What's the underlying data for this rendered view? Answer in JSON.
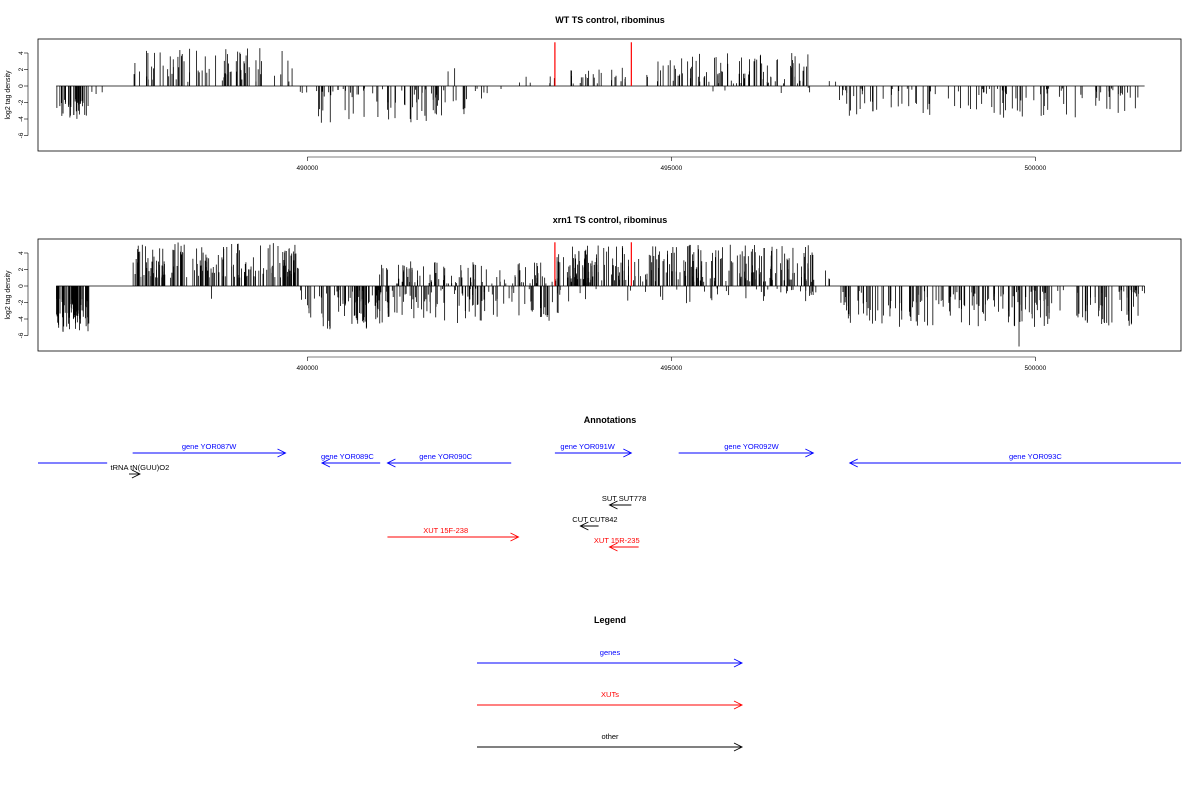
{
  "chart_data": [
    {
      "type": "bar",
      "title": "WT TS control, ribominus",
      "ylabel": "log2 tag density",
      "xlabel": "",
      "xlim": [
        486300,
        502000
      ],
      "ylim": [
        -7,
        6
      ],
      "yticks": [
        4,
        2,
        0,
        -2,
        -4,
        -6
      ],
      "xticks": [
        490000,
        495000,
        500000
      ],
      "highlight": [
        {
          "x": 493400,
          "y": 5.3,
          "color": "#ff0000"
        },
        {
          "x": 494450,
          "y": 5.3,
          "color": "#ff0000"
        }
      ],
      "regions": [
        {
          "start": 486550,
          "end": 487000,
          "sign": -1,
          "min": 1.5,
          "max": 4.0,
          "n": 40
        },
        {
          "start": 487000,
          "end": 487200,
          "sign": -1,
          "min": 0.5,
          "max": 1.0,
          "n": 3
        },
        {
          "start": 487600,
          "end": 489800,
          "sign": 1,
          "min": 0.5,
          "max": 4.6,
          "n": 75
        },
        {
          "start": 489900,
          "end": 490000,
          "sign": -1,
          "min": 0.3,
          "max": 1.0,
          "n": 3
        },
        {
          "start": 490100,
          "end": 492200,
          "sign": -1,
          "min": 0.3,
          "max": 4.5,
          "n": 70
        },
        {
          "start": 491900,
          "end": 492050,
          "sign": 1,
          "min": 1.0,
          "max": 3.0,
          "n": 2
        },
        {
          "start": 492300,
          "end": 492700,
          "sign": -1,
          "min": 0.3,
          "max": 2.0,
          "n": 6
        },
        {
          "start": 492900,
          "end": 493100,
          "sign": 1,
          "min": 0.3,
          "max": 1.2,
          "n": 3
        },
        {
          "start": 493300,
          "end": 493400,
          "sign": 1,
          "min": 0.3,
          "max": 1.2,
          "n": 3
        },
        {
          "start": 493500,
          "end": 494400,
          "sign": 1,
          "min": 0.3,
          "max": 2.3,
          "n": 25
        },
        {
          "start": 494650,
          "end": 496900,
          "sign": 1,
          "min": 0.3,
          "max": 4.0,
          "n": 90
        },
        {
          "start": 495400,
          "end": 497000,
          "sign": -1,
          "min": 0.2,
          "max": 1.0,
          "n": 5
        },
        {
          "start": 497100,
          "end": 497300,
          "sign": 1,
          "min": 0.3,
          "max": 1.3,
          "n": 2
        },
        {
          "start": 497300,
          "end": 501500,
          "sign": -1,
          "min": 0.3,
          "max": 4.0,
          "n": 110
        }
      ]
    },
    {
      "type": "bar",
      "title": "xrn1 TS control, ribominus",
      "ylabel": "log2 tag density",
      "xlabel": "",
      "xlim": [
        486300,
        502000
      ],
      "ylim": [
        -7,
        6
      ],
      "yticks": [
        4,
        2,
        0,
        -2,
        -4,
        -6
      ],
      "xticks": [
        490000,
        495000,
        500000
      ],
      "highlight": [
        {
          "x": 493400,
          "y": 5.3,
          "color": "#ff0000"
        },
        {
          "x": 494450,
          "y": 5.3,
          "color": "#ff0000"
        }
      ],
      "regions": [
        {
          "start": 486550,
          "end": 487000,
          "sign": -1,
          "min": 1.5,
          "max": 5.7,
          "n": 70
        },
        {
          "start": 487600,
          "end": 489900,
          "sign": 1,
          "min": 1.0,
          "max": 5.3,
          "n": 170
        },
        {
          "start": 488600,
          "end": 488700,
          "sign": -1,
          "min": 1.5,
          "max": 2.8,
          "n": 1
        },
        {
          "start": 489900,
          "end": 491000,
          "sign": -1,
          "min": 0.5,
          "max": 5.8,
          "n": 70
        },
        {
          "start": 490900,
          "end": 494000,
          "sign": 1,
          "min": 0.3,
          "max": 3.0,
          "n": 120
        },
        {
          "start": 490900,
          "end": 493500,
          "sign": -1,
          "min": 0.3,
          "max": 4.5,
          "n": 110
        },
        {
          "start": 493400,
          "end": 497000,
          "sign": 1,
          "min": 0.5,
          "max": 5.0,
          "n": 230
        },
        {
          "start": 493500,
          "end": 497000,
          "sign": -1,
          "min": 0.3,
          "max": 2.2,
          "n": 40
        },
        {
          "start": 497100,
          "end": 497300,
          "sign": 1,
          "min": 0.5,
          "max": 2.8,
          "n": 3
        },
        {
          "start": 497300,
          "end": 501500,
          "sign": -1,
          "min": 0.5,
          "max": 5.0,
          "n": 200
        },
        {
          "start": 499750,
          "end": 499800,
          "sign": -1,
          "min": 7.3,
          "max": 7.4,
          "n": 1
        }
      ]
    }
  ],
  "annotations": {
    "title": "Annotations",
    "features": [
      {
        "label": "gene YOR087W",
        "color": "#0000ff",
        "dir": 1,
        "start": 487600,
        "end": 489700,
        "row": 0,
        "label_pos": 488650
      },
      {
        "label": "",
        "color": "#0000ff",
        "dir": 1,
        "start": 486300,
        "end": 487250,
        "row": 1,
        "label_pos": 486800,
        "noarrow": true
      },
      {
        "label": "gene YOR089C",
        "color": "#0000ff",
        "dir": -1,
        "start": 490200,
        "end": 491000,
        "row": 1,
        "label_pos": 490550
      },
      {
        "label": "gene YOR090C",
        "color": "#0000ff",
        "dir": -1,
        "start": 491100,
        "end": 492800,
        "row": 1,
        "label_pos": 491900
      },
      {
        "label": "gene YOR091W",
        "color": "#0000ff",
        "dir": 1,
        "start": 493400,
        "end": 494450,
        "row": 0,
        "label_pos": 493850
      },
      {
        "label": "gene YOR092W",
        "color": "#0000ff",
        "dir": 1,
        "start": 495100,
        "end": 496950,
        "row": 0,
        "label_pos": 496100
      },
      {
        "label": "gene YOR093C",
        "color": "#0000ff",
        "dir": -1,
        "start": 497450,
        "end": 502000,
        "row": 1,
        "label_pos": 500000
      },
      {
        "label": "tRNA tN(GUU)O2",
        "color": "#000000",
        "dir": 1,
        "start": 487550,
        "end": 487700,
        "row": 2,
        "label_pos": 487700
      },
      {
        "label": "SUT SUT778",
        "color": "#000000",
        "dir": -1,
        "start": 494150,
        "end": 494450,
        "row": 4,
        "label_pos": 494350
      },
      {
        "label": "CUT CUT842",
        "color": "#000000",
        "dir": -1,
        "start": 493750,
        "end": 494000,
        "row": 5,
        "label_pos": 493950
      },
      {
        "label": "XUT 15F-238",
        "color": "#ff0000",
        "dir": 1,
        "start": 491100,
        "end": 492900,
        "row": 6,
        "label_pos": 491900
      },
      {
        "label": "XUT 15R-235",
        "color": "#ff0000",
        "dir": -1,
        "start": 494150,
        "end": 494550,
        "row": 7,
        "label_pos": 494250
      }
    ]
  },
  "legend": {
    "title": "Legend",
    "items": [
      {
        "label": "genes",
        "color": "#0000ff"
      },
      {
        "label": "XUTs",
        "color": "#ff0000"
      },
      {
        "label": "other",
        "color": "#000000"
      }
    ]
  }
}
